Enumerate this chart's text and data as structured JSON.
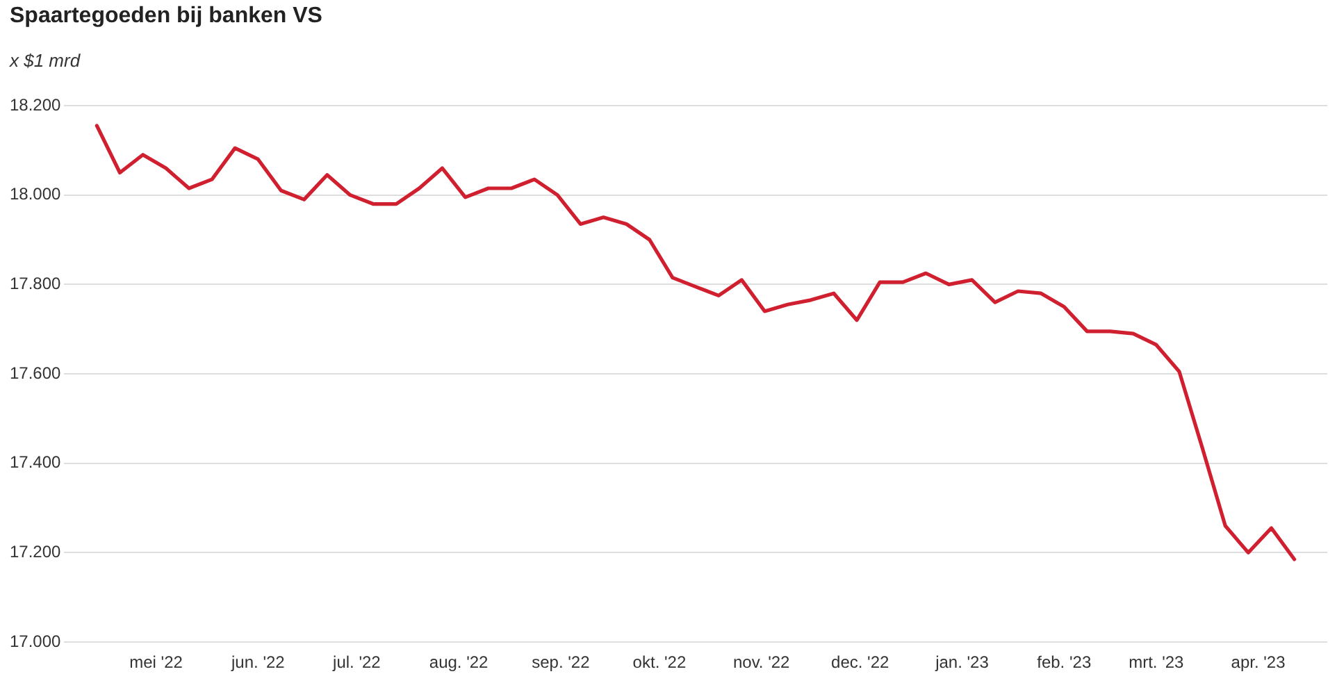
{
  "chart_data": {
    "type": "line",
    "title": "Spaartegoeden bij banken VS",
    "ylabel": "x $1 mrd",
    "x": [
      "2022-04-13",
      "2022-04-20",
      "2022-04-27",
      "2022-05-04",
      "2022-05-11",
      "2022-05-18",
      "2022-05-25",
      "2022-06-01",
      "2022-06-08",
      "2022-06-15",
      "2022-06-22",
      "2022-06-29",
      "2022-07-06",
      "2022-07-13",
      "2022-07-20",
      "2022-07-27",
      "2022-08-03",
      "2022-08-10",
      "2022-08-17",
      "2022-08-24",
      "2022-08-31",
      "2022-09-07",
      "2022-09-14",
      "2022-09-21",
      "2022-09-28",
      "2022-10-05",
      "2022-10-12",
      "2022-10-19",
      "2022-10-26",
      "2022-11-02",
      "2022-11-09",
      "2022-11-16",
      "2022-11-23",
      "2022-11-30",
      "2022-12-07",
      "2022-12-14",
      "2022-12-21",
      "2022-12-28",
      "2023-01-04",
      "2023-01-11",
      "2023-01-18",
      "2023-01-25",
      "2023-02-01",
      "2023-02-08",
      "2023-02-15",
      "2023-02-22",
      "2023-03-01",
      "2023-03-08",
      "2023-03-15",
      "2023-03-22",
      "2023-03-29",
      "2023-04-05",
      "2023-04-12"
    ],
    "values": [
      18155,
      18050,
      18090,
      18060,
      18015,
      18035,
      18105,
      18080,
      18010,
      17990,
      18045,
      18000,
      17980,
      17980,
      18015,
      18060,
      17995,
      18015,
      18015,
      18035,
      18000,
      17935,
      17950,
      17935,
      17900,
      17815,
      17795,
      17775,
      17810,
      17740,
      17755,
      17765,
      17780,
      17720,
      17805,
      17805,
      17825,
      17800,
      17810,
      17760,
      17785,
      17780,
      17750,
      17695,
      17695,
      17690,
      17665,
      17605,
      17435,
      17260,
      17200,
      17255,
      17185
    ],
    "color": "#d01f2f",
    "xlim": [
      "2022-04-03",
      "2023-04-22"
    ],
    "xticks": [
      {
        "value": "2022-05",
        "label": "mei '22"
      },
      {
        "value": "2022-06",
        "label": "jun. '22"
      },
      {
        "value": "2022-07",
        "label": "jul. '22"
      },
      {
        "value": "2022-08",
        "label": "aug. '22"
      },
      {
        "value": "2022-09",
        "label": "sep. '22"
      },
      {
        "value": "2022-10",
        "label": "okt. '22"
      },
      {
        "value": "2022-11",
        "label": "nov. '22"
      },
      {
        "value": "2022-12",
        "label": "dec. '22"
      },
      {
        "value": "2023-01",
        "label": "jan. '23"
      },
      {
        "value": "2023-02",
        "label": "feb. '23"
      },
      {
        "value": "2023-03",
        "label": "mrt. '23"
      },
      {
        "value": "2023-04",
        "label": "apr. '23"
      }
    ],
    "ylim": [
      17000,
      18200
    ],
    "yticks": [
      {
        "value": 17000,
        "label": "17.000"
      },
      {
        "value": 17200,
        "label": "17.200"
      },
      {
        "value": 17400,
        "label": "17.400"
      },
      {
        "value": 17600,
        "label": "17.600"
      },
      {
        "value": 17800,
        "label": "17.800"
      },
      {
        "value": 18000,
        "label": "18.000"
      },
      {
        "value": 18200,
        "label": "18.200"
      }
    ],
    "grid": "y",
    "marker": "none",
    "line_style": "solid"
  }
}
